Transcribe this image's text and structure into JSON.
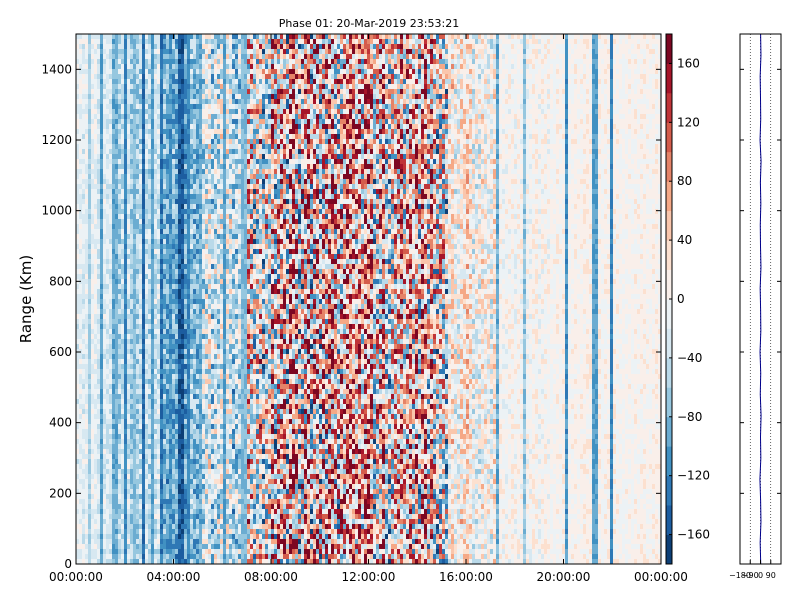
{
  "title": "Phase 01: 20-Mar-2019 23:53:21",
  "chart_data": [
    {
      "type": "heatmap",
      "title": "Phase 01: 20-Mar-2019 23:53:21",
      "xlabel": "",
      "ylabel": "Range (Km)",
      "x_tick_labels": [
        "00:00:00",
        "04:00:00",
        "08:00:00",
        "12:00:00",
        "16:00:00",
        "20:00:00",
        "00:00:00"
      ],
      "x_range_hours": [
        0,
        24
      ],
      "y_ticks": [
        0,
        200,
        400,
        600,
        800,
        1000,
        1200,
        1400
      ],
      "y_range": [
        0,
        1500
      ],
      "colorbar": {
        "range": [
          -180,
          180
        ],
        "ticks": [
          -160,
          -120,
          -80,
          -40,
          0,
          40,
          80,
          120,
          160
        ],
        "colormap": "RdBu_r (blue = negative, white = 0, red = positive)",
        "levels": 18
      },
      "grid": false,
      "profile_bands": [
        {
          "hours": [
            0,
            1.5
          ],
          "mean": -20,
          "spread": 25
        },
        {
          "hours": [
            1.5,
            3.5
          ],
          "mean": -45,
          "spread": 40
        },
        {
          "hours": [
            3.5,
            5.2
          ],
          "mean": -80,
          "spread": 50
        },
        {
          "hours": [
            5.2,
            6.8
          ],
          "mean": -35,
          "spread": 80
        },
        {
          "hours": [
            6.8,
            8
          ],
          "mean": 10,
          "spread": 140
        },
        {
          "hours": [
            8,
            11
          ],
          "mean": 25,
          "spread": 170
        },
        {
          "hours": [
            11,
            15.3
          ],
          "mean": 30,
          "spread": 150
        },
        {
          "hours": [
            15.3,
            17.2
          ],
          "mean": 10,
          "spread": 60
        },
        {
          "hours": [
            17.2,
            19.5
          ],
          "mean": 5,
          "spread": 25
        },
        {
          "hours": [
            19.5,
            24
          ],
          "mean": 5,
          "spread": 18
        }
      ],
      "distinct_columns": [
        {
          "hour": 0.55,
          "value": -60
        },
        {
          "hour": 1.05,
          "value": -100
        },
        {
          "hour": 1.6,
          "value": -90
        },
        {
          "hour": 2.0,
          "value": -120
        },
        {
          "hour": 2.4,
          "value": -80
        },
        {
          "hour": 2.75,
          "value": -140
        },
        {
          "hour": 3.1,
          "value": -100
        },
        {
          "hour": 3.5,
          "value": -130
        },
        {
          "hour": 3.9,
          "value": -110
        },
        {
          "hour": 4.3,
          "value": -150
        },
        {
          "hour": 4.6,
          "value": -120
        },
        {
          "hour": 5.1,
          "value": -90
        },
        {
          "hour": 6.1,
          "value": -100
        },
        {
          "hour": 6.9,
          "value": -80
        },
        {
          "hour": 17.25,
          "value": -90
        },
        {
          "hour": 18.4,
          "value": -70
        },
        {
          "hour": 20.1,
          "value": -110
        },
        {
          "hour": 21.3,
          "value": -100
        },
        {
          "hour": 22.0,
          "value": -120
        }
      ]
    },
    {
      "type": "line",
      "title": "",
      "xlabel": "",
      "ylabel": "",
      "x_tick_labels": [
        "−180",
        "−90",
        "0",
        "90"
      ],
      "x_range": [
        -180,
        180
      ],
      "y_range": [
        0,
        1500
      ],
      "gridlines_x": [
        -90,
        0,
        90
      ],
      "series_color": "#00008b",
      "description_value": "phase profile near 0 across all ranges",
      "values": [
        [
          2,
          0
        ],
        [
          -3,
          60
        ],
        [
          4,
          120
        ],
        [
          1,
          180
        ],
        [
          -5,
          240
        ],
        [
          3,
          300
        ],
        [
          0,
          360
        ],
        [
          5,
          420
        ],
        [
          -2,
          480
        ],
        [
          2,
          540
        ],
        [
          -4,
          600
        ],
        [
          3,
          660
        ],
        [
          1,
          720
        ],
        [
          -3,
          780
        ],
        [
          4,
          840
        ],
        [
          0,
          900
        ],
        [
          -2,
          960
        ],
        [
          3,
          1020
        ],
        [
          -1,
          1080
        ],
        [
          5,
          1140
        ],
        [
          -4,
          1200
        ],
        [
          2,
          1260
        ],
        [
          0,
          1320
        ],
        [
          -3,
          1380
        ],
        [
          4,
          1440
        ],
        [
          1,
          1500
        ]
      ]
    }
  ]
}
